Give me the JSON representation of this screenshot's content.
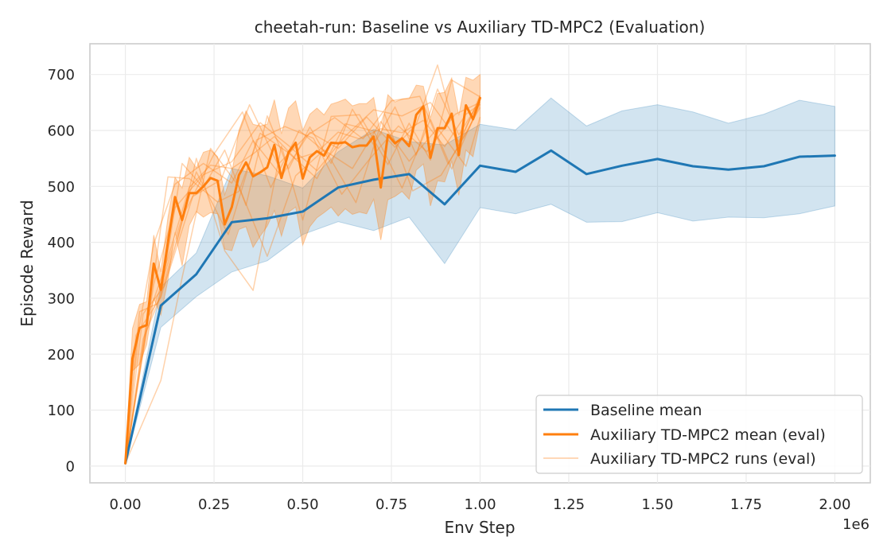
{
  "chart_data": {
    "type": "line",
    "title": "cheetah-run: Baseline vs Auxiliary TD-MPC2 (Evaluation)",
    "xlabel": "Env Step",
    "ylabel": "Episode Reward",
    "x_offset_label": "1e6",
    "xlim": [
      -0.1,
      2.1
    ],
    "ylim": [
      -30,
      755
    ],
    "x_ticks": [
      0.0,
      0.25,
      0.5,
      0.75,
      1.0,
      1.25,
      1.5,
      1.75,
      2.0
    ],
    "x_tick_labels": [
      "0.00",
      "0.25",
      "0.50",
      "0.75",
      "1.00",
      "1.25",
      "1.50",
      "1.75",
      "2.00"
    ],
    "y_ticks": [
      0,
      100,
      200,
      300,
      400,
      500,
      600,
      700
    ],
    "y_tick_labels": [
      "0",
      "100",
      "200",
      "300",
      "400",
      "500",
      "600",
      "700"
    ],
    "grid": true,
    "legend_position": "bottom-right",
    "colors": {
      "baseline": "#1f77b4",
      "auxiliary": "#ff7f0e"
    },
    "series": [
      {
        "name": "Baseline mean",
        "kind": "mean",
        "x": [
          0.0,
          0.1,
          0.2,
          0.3,
          0.4,
          0.5,
          0.6,
          0.7,
          0.8,
          0.9,
          1.0,
          1.1,
          1.2,
          1.3,
          1.4,
          1.5,
          1.6,
          1.7,
          1.8,
          1.9,
          2.0
        ],
        "y": [
          5,
          287,
          343,
          436,
          443,
          455,
          498,
          512,
          522,
          468,
          537,
          526,
          564,
          522,
          537,
          549,
          536,
          530,
          536,
          553,
          555
        ],
        "band_lower": [
          5,
          248,
          303,
          347,
          367,
          414,
          437,
          421,
          445,
          362,
          462,
          451,
          468,
          436,
          437,
          453,
          438,
          445,
          444,
          451,
          465
        ],
        "band_upper": [
          5,
          320,
          381,
          532,
          519,
          497,
          562,
          602,
          580,
          574,
          611,
          601,
          658,
          608,
          635,
          646,
          633,
          613,
          629,
          654,
          643
        ]
      },
      {
        "name": "Auxiliary TD-MPC2 mean (eval)",
        "kind": "mean",
        "x": [
          0.0,
          0.02,
          0.04,
          0.06,
          0.08,
          0.1,
          0.12,
          0.14,
          0.16,
          0.18,
          0.2,
          0.22,
          0.24,
          0.26,
          0.28,
          0.3,
          0.32,
          0.34,
          0.36,
          0.38,
          0.4,
          0.42,
          0.44,
          0.46,
          0.48,
          0.5,
          0.52,
          0.54,
          0.56,
          0.58,
          0.6,
          0.62,
          0.64,
          0.66,
          0.68,
          0.7,
          0.72,
          0.74,
          0.76,
          0.78,
          0.8,
          0.82,
          0.84,
          0.86,
          0.88,
          0.9,
          0.92,
          0.94,
          0.96,
          0.98,
          1.0
        ],
        "y": [
          5,
          192,
          247,
          252,
          362,
          315,
          400,
          481,
          440,
          488,
          488,
          500,
          515,
          510,
          432,
          463,
          520,
          543,
          518,
          525,
          534,
          574,
          515,
          561,
          578,
          514,
          552,
          563,
          555,
          578,
          577,
          579,
          570,
          573,
          573,
          589,
          498,
          592,
          577,
          586,
          572,
          628,
          643,
          551,
          604,
          604,
          630,
          556,
          645,
          620,
          658
        ],
        "band_lower": [
          5,
          170,
          182,
          217,
          299,
          270,
          332,
          418,
          358,
          430,
          455,
          445,
          453,
          451,
          388,
          385,
          423,
          428,
          391,
          411,
          429,
          457,
          411,
          454,
          463,
          395,
          428,
          444,
          453,
          463,
          447,
          460,
          450,
          454,
          451,
          477,
          404,
          476,
          482,
          491,
          477,
          529,
          540,
          465,
          510,
          508,
          545,
          484,
          565,
          553,
          616
        ],
        "band_upper": [
          5,
          246,
          289,
          294,
          413,
          347,
          445,
          516,
          497,
          552,
          533,
          561,
          565,
          553,
          485,
          523,
          600,
          635,
          611,
          608,
          611,
          655,
          594,
          640,
          653,
          600,
          629,
          640,
          628,
          647,
          651,
          656,
          644,
          648,
          648,
          659,
          591,
          664,
          651,
          656,
          657,
          681,
          679,
          622,
          666,
          668,
          694,
          627,
          695,
          690,
          700
        ]
      },
      {
        "name": "Auxiliary TD-MPC2 runs (eval)",
        "kind": "runs"
      }
    ],
    "runs": [
      {
        "x": [
          0.0,
          0.06,
          0.12,
          0.18,
          0.24,
          0.3,
          0.36,
          0.42,
          0.48,
          0.54,
          0.6,
          0.66,
          0.72,
          0.78,
          0.84,
          0.9,
          0.96,
          1.0
        ],
        "y": [
          5,
          260,
          372,
          498,
          538,
          532,
          558,
          589,
          549,
          561,
          597,
          585,
          603,
          596,
          618,
          571,
          629,
          647
        ]
      },
      {
        "x": [
          0.0,
          0.04,
          0.08,
          0.14,
          0.22,
          0.3,
          0.36,
          0.44,
          0.52,
          0.6,
          0.68,
          0.76,
          0.82,
          0.88,
          0.94,
          1.0
        ],
        "y": [
          5,
          252,
          397,
          504,
          541,
          506,
          582,
          518,
          597,
          568,
          624,
          570,
          611,
          717,
          574,
          663
        ]
      },
      {
        "x": [
          0.0,
          0.05,
          0.1,
          0.16,
          0.22,
          0.28,
          0.34,
          0.4,
          0.46,
          0.52,
          0.58,
          0.64,
          0.7,
          0.76,
          0.82,
          0.88,
          0.94,
          1.0
        ],
        "y": [
          5,
          227,
          304,
          541,
          498,
          565,
          466,
          626,
          531,
          606,
          541,
          638,
          574,
          642,
          556,
          674,
          592,
          654
        ]
      },
      {
        "x": [
          0.0,
          0.07,
          0.12,
          0.18,
          0.26,
          0.32,
          0.38,
          0.46,
          0.54,
          0.62,
          0.7,
          0.78,
          0.86,
          0.92,
          1.0
        ],
        "y": [
          5,
          293,
          517,
          514,
          472,
          491,
          595,
          560,
          514,
          612,
          599,
          497,
          620,
          531,
          651
        ]
      },
      {
        "x": [
          0.0,
          0.03,
          0.1,
          0.15,
          0.2,
          0.28,
          0.36,
          0.44,
          0.5,
          0.58,
          0.66,
          0.74,
          0.8,
          0.86,
          0.92,
          1.0
        ],
        "y": [
          5,
          234,
          302,
          412,
          550,
          385,
          314,
          572,
          440,
          625,
          628,
          539,
          613,
          547,
          690,
          660
        ]
      },
      {
        "x": [
          0.0,
          0.1,
          0.16,
          0.24,
          0.32,
          0.4,
          0.48,
          0.56,
          0.64,
          0.72,
          0.8,
          0.88,
          0.96,
          1.0
        ],
        "y": [
          5,
          153,
          337,
          568,
          500,
          375,
          519,
          565,
          532,
          616,
          545,
          604,
          536,
          624
        ]
      },
      {
        "x": [
          0.0,
          0.04,
          0.09,
          0.17,
          0.25,
          0.33,
          0.41,
          0.49,
          0.57,
          0.65,
          0.73,
          0.81,
          0.89,
          0.97,
          1.0
        ],
        "y": [
          5,
          276,
          290,
          457,
          558,
          633,
          498,
          600,
          558,
          471,
          631,
          492,
          520,
          605,
          647
        ]
      },
      {
        "x": [
          0.0,
          0.08,
          0.14,
          0.22,
          0.3,
          0.38,
          0.46,
          0.54,
          0.62,
          0.7,
          0.78,
          0.86,
          0.94,
          1.0
        ],
        "y": [
          5,
          325,
          462,
          521,
          544,
          614,
          573,
          528,
          590,
          637,
          626,
          650,
          580,
          657
        ]
      },
      {
        "x": [
          0.0,
          0.05,
          0.11,
          0.19,
          0.27,
          0.35,
          0.43,
          0.51,
          0.59,
          0.67,
          0.75,
          0.83,
          0.91,
          1.0
        ],
        "y": [
          5,
          272,
          322,
          482,
          512,
          646,
          539,
          590,
          623,
          585,
          653,
          661,
          540,
          641
        ]
      },
      {
        "x": [
          0.0,
          0.06,
          0.13,
          0.2,
          0.29,
          0.37,
          0.45,
          0.53,
          0.61,
          0.69,
          0.77,
          0.85,
          0.93,
          1.0
        ],
        "y": [
          5,
          242,
          383,
          526,
          414,
          583,
          607,
          586,
          486,
          550,
          608,
          562,
          629,
          650
        ]
      }
    ]
  }
}
